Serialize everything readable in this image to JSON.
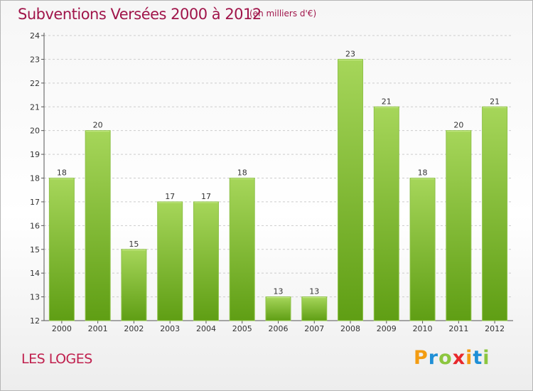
{
  "header": {
    "title": "Subventions Versées 2000 à 2012",
    "subtitle": "(en milliers d'€)"
  },
  "footer": {
    "place": "LES LOGES",
    "logo_letters": [
      "P",
      "r",
      "o",
      "x",
      "i",
      "t",
      "i"
    ],
    "logo_colors": [
      "#f39c12",
      "#1f8fd6",
      "#8cc63f",
      "#e8282c",
      "#f39c12",
      "#1f8fd6",
      "#8cc63f"
    ],
    "logo_alt": "Proxiti"
  },
  "colors": {
    "bar_top": "#a6d65a",
    "bar_bottom": "#5f9e14",
    "grid": "#cccccc",
    "axis": "#555555"
  },
  "chart_data": {
    "type": "bar",
    "title": "Subventions Versées 2000 à 2012",
    "subtitle": "(en milliers d'€)",
    "categories": [
      "2000",
      "2001",
      "2002",
      "2003",
      "2004",
      "2005",
      "2006",
      "2007",
      "2008",
      "2009",
      "2010",
      "2011",
      "2012"
    ],
    "values": [
      18,
      20,
      15,
      17,
      17,
      18,
      13,
      13,
      23,
      21,
      18,
      20,
      21
    ],
    "ylim": [
      12,
      24
    ],
    "yticks": [
      12,
      13,
      14,
      15,
      16,
      17,
      18,
      19,
      20,
      21,
      22,
      23,
      24
    ],
    "grid": true,
    "grid_style": "dashed horizontal",
    "data_labels": true,
    "legend": "none"
  }
}
